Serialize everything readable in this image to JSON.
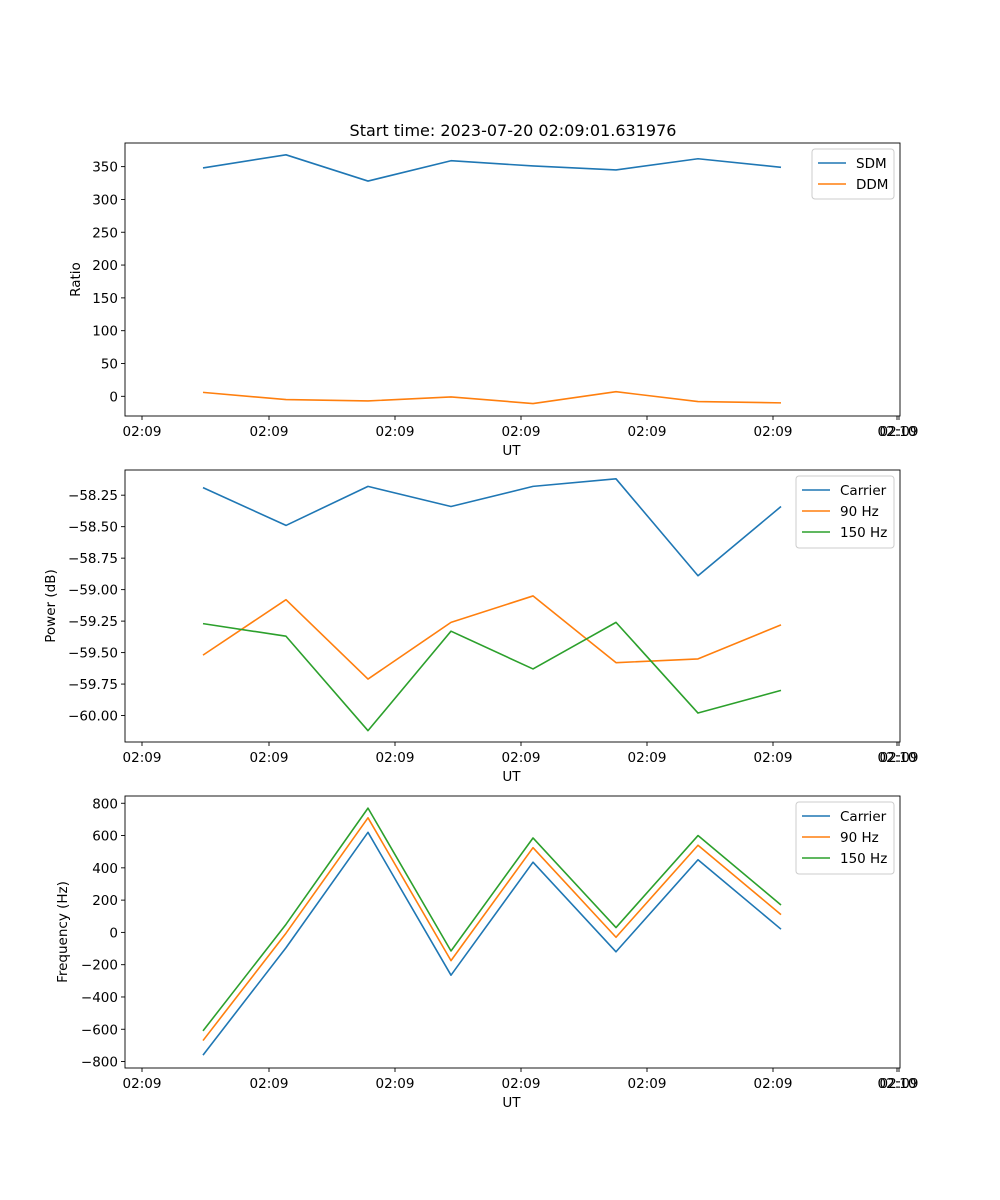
{
  "chart_data": [
    {
      "type": "line",
      "title": "Start time: 2023-07-20 02:09:01.631976",
      "xlabel": "UT",
      "ylabel": "Ratio",
      "x_ticks": [
        "02:09",
        "02:09",
        "02:09",
        "02:09",
        "02:09",
        "02:09",
        "02:09",
        "02:10"
      ],
      "y_ticks": [
        0,
        50,
        100,
        150,
        200,
        250,
        300,
        350
      ],
      "ylim": [
        -30,
        386
      ],
      "legend": "top-right",
      "series": [
        {
          "name": "SDM",
          "color": "#1f77b4",
          "values": [
            348,
            368,
            328,
            359,
            351,
            345,
            362,
            349
          ]
        },
        {
          "name": "DDM",
          "color": "#ff7f0e",
          "values": [
            6,
            -5,
            -7,
            -1,
            -11,
            7,
            -8,
            -10
          ]
        }
      ]
    },
    {
      "type": "line",
      "title": "",
      "xlabel": "UT",
      "ylabel": "Power (dB)",
      "x_ticks": [
        "02:09",
        "02:09",
        "02:09",
        "02:09",
        "02:09",
        "02:09",
        "02:09",
        "02:10"
      ],
      "y_ticks": [
        "−58.25",
        "−58.50",
        "−58.75",
        "−59.00",
        "−59.25",
        "−59.50",
        "−59.75",
        "−60.00"
      ],
      "ylim": [
        -60.21,
        -58.05
      ],
      "legend": "top-right",
      "series": [
        {
          "name": "Carrier",
          "color": "#1f77b4",
          "values": [
            -58.19,
            -58.49,
            -58.18,
            -58.34,
            -58.18,
            -58.12,
            -58.89,
            -58.34
          ]
        },
        {
          "name": "90 Hz",
          "color": "#ff7f0e",
          "values": [
            -59.52,
            -59.08,
            -59.71,
            -59.26,
            -59.05,
            -59.58,
            -59.55,
            -59.28
          ]
        },
        {
          "name": "150 Hz",
          "color": "#2ca02c",
          "values": [
            -59.27,
            -59.37,
            -60.12,
            -59.33,
            -59.63,
            -59.26,
            -59.98,
            -59.8
          ]
        }
      ]
    },
    {
      "type": "line",
      "title": "",
      "xlabel": "UT",
      "ylabel": "Frequency (Hz)",
      "x_ticks": [
        "02:09",
        "02:09",
        "02:09",
        "02:09",
        "02:09",
        "02:09",
        "02:09",
        "02:10"
      ],
      "y_ticks": [
        "−800",
        "−600",
        "−400",
        "−200",
        "0",
        "200",
        "400",
        "600",
        "800"
      ],
      "ylim": [
        -840,
        845
      ],
      "legend": "top-right",
      "series": [
        {
          "name": "Carrier",
          "color": "#1f77b4",
          "values": [
            -760,
            -95,
            620,
            -265,
            435,
            -120,
            450,
            20
          ]
        },
        {
          "name": "90 Hz",
          "color": "#ff7f0e",
          "values": [
            -670,
            -5,
            710,
            -175,
            525,
            -30,
            540,
            110
          ]
        },
        {
          "name": "150 Hz",
          "color": "#2ca02c",
          "values": [
            -610,
            50,
            770,
            -115,
            585,
            30,
            600,
            170
          ]
        }
      ]
    }
  ]
}
